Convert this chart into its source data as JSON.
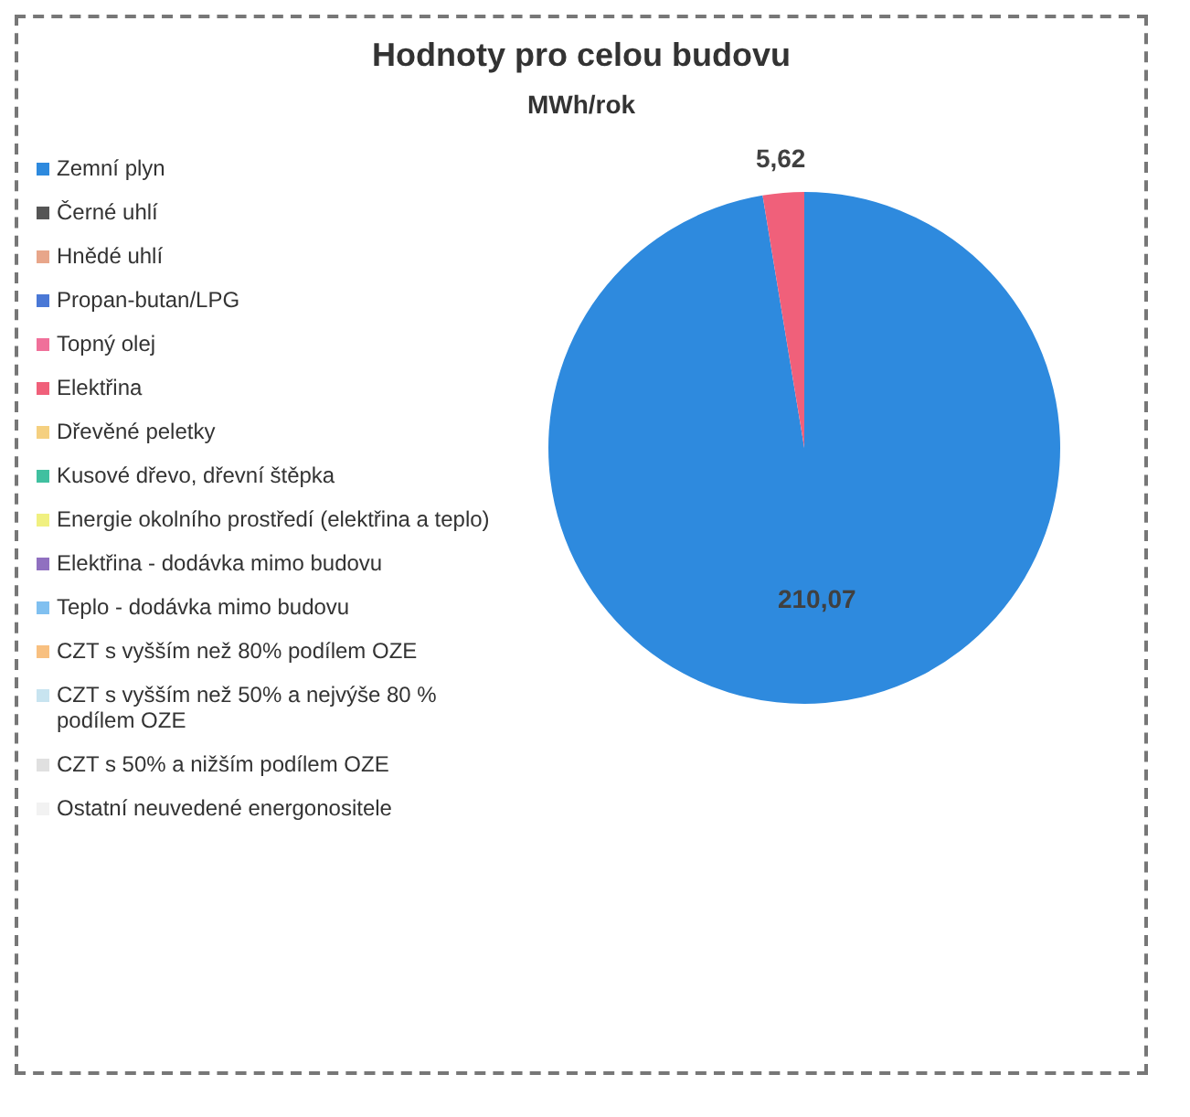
{
  "chart_data": {
    "type": "pie",
    "title": "Hodnoty pro celou budovu",
    "subtitle": "MWh/rok",
    "categories": [
      "Zemní plyn",
      "Černé uhlí",
      "Hnědé uhlí",
      "Propan-butan/LPG",
      "Topný olej",
      "Elektřina",
      "Dřevěné peletky",
      "Kusové dřevo, dřevní štěpka",
      "Energie okolního prostředí (elektřina a teplo)",
      "Elektřina - dodávka mimo budovu",
      "Teplo - dodávka mimo budovu",
      "CZT s vyšším než 80% podílem OZE",
      "CZT  s vyšším než 50% a nejvýše 80 % podílem OZE",
      "CZT s 50% a nižším podílem OZE",
      "Ostatní neuvedené energonositele"
    ],
    "values": [
      210.07,
      0,
      0,
      0,
      0,
      5.62,
      0,
      0,
      0,
      0,
      0,
      0,
      0,
      0,
      0
    ],
    "value_labels": [
      "210,07",
      null,
      null,
      null,
      null,
      "5,62",
      null,
      null,
      null,
      null,
      null,
      null,
      null,
      null,
      null
    ],
    "colors": [
      "#2e8ade",
      "#555555",
      "#e8a68a",
      "#4a78d6",
      "#f0709a",
      "#f0607a",
      "#f5d080",
      "#40c0a0",
      "#f0f080",
      "#9070c0",
      "#80c0f0",
      "#f8c080",
      "#c8e4f0",
      "#e0e0e0",
      "#f2f2f2"
    ],
    "legend": "left"
  }
}
